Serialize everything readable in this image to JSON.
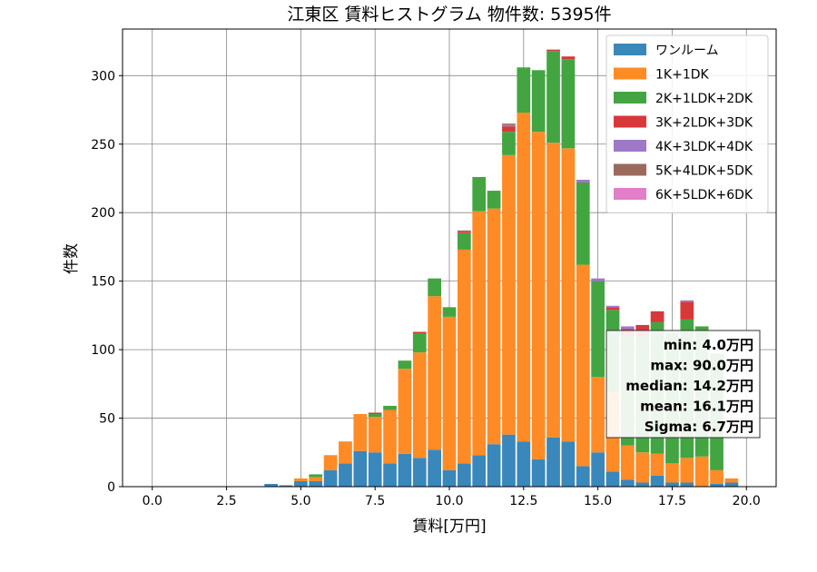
{
  "chart_data": {
    "type": "bar",
    "stacked": true,
    "title": "江東区 賃料ヒストグラム  物件数: 5395件",
    "xlabel": "賃料[万円]",
    "ylabel": "件数",
    "xlim": [
      -1,
      21
    ],
    "ylim": [
      0,
      334
    ],
    "xticks": [
      0.0,
      2.5,
      5.0,
      7.5,
      10.0,
      12.5,
      15.0,
      17.5,
      20.0
    ],
    "xtick_labels": [
      "0.0",
      "2.5",
      "5.0",
      "7.5",
      "10.0",
      "12.5",
      "15.0",
      "17.5",
      "20.0"
    ],
    "yticks": [
      0,
      50,
      100,
      150,
      200,
      250,
      300
    ],
    "ytick_labels": [
      "0",
      "50",
      "100",
      "150",
      "200",
      "250",
      "300"
    ],
    "grid": true,
    "legend_position": "top-right",
    "bin_width": 0.5,
    "x": [
      4.0,
      4.5,
      5.0,
      5.5,
      6.0,
      6.5,
      7.0,
      7.5,
      8.0,
      8.5,
      9.0,
      9.5,
      10.0,
      10.5,
      11.0,
      11.5,
      12.0,
      12.5,
      13.0,
      13.5,
      14.0,
      14.5,
      15.0,
      15.5,
      16.0,
      16.5,
      17.0,
      17.5,
      18.0,
      18.5,
      19.0,
      19.5
    ],
    "series": [
      {
        "name": "ワンルーム",
        "color": "#3a87bb",
        "values": [
          2,
          1,
          4,
          4,
          12,
          17,
          26,
          25,
          17,
          24,
          21,
          27,
          12,
          17,
          23,
          31,
          38,
          33,
          20,
          36,
          33,
          15,
          25,
          11,
          5,
          3,
          8,
          3,
          3,
          0,
          2,
          3
        ]
      },
      {
        "name": "1K+1DK",
        "color": "#ff8b26",
        "values": [
          0,
          0,
          2,
          3,
          11,
          16,
          27,
          26,
          39,
          62,
          77,
          112,
          112,
          156,
          178,
          172,
          204,
          240,
          239,
          215,
          214,
          147,
          55,
          58,
          25,
          22,
          16,
          14,
          18,
          22,
          10,
          3
        ]
      },
      {
        "name": "2K+1LDK+2DK",
        "color": "#43a541",
        "values": [
          0,
          0,
          0,
          2,
          0,
          0,
          0,
          2,
          3,
          6,
          14,
          13,
          7,
          12,
          25,
          13,
          17,
          33,
          45,
          67,
          65,
          60,
          70,
          60,
          80,
          85,
          96,
          95,
          101,
          95,
          85,
          0
        ]
      },
      {
        "name": "3K+2LDK+3DK",
        "color": "#d7383a",
        "values": [
          0,
          0,
          0,
          0,
          0,
          0,
          0,
          1,
          0,
          0,
          1,
          0,
          0,
          1,
          0,
          0,
          4,
          0,
          0,
          1,
          2,
          0,
          0,
          2,
          5,
          8,
          8,
          0,
          13,
          0,
          0,
          0
        ]
      },
      {
        "name": "4K+3LDK+4DK",
        "color": "#9f78c8",
        "values": [
          0,
          0,
          0,
          0,
          0,
          0,
          0,
          0,
          0,
          0,
          0,
          0,
          0,
          0,
          0,
          0,
          1,
          0,
          0,
          0,
          0,
          2,
          2,
          1,
          2,
          0,
          0,
          0,
          1,
          0,
          0,
          0
        ]
      },
      {
        "name": "5K+4LDK+5DK",
        "color": "#9a6a5c",
        "values": [
          0,
          0,
          0,
          0,
          0,
          0,
          0,
          0,
          0,
          0,
          0,
          0,
          0,
          1,
          0,
          0,
          1,
          0,
          0,
          0,
          0,
          0,
          0,
          0,
          0,
          0,
          0,
          0,
          0,
          0,
          0,
          0
        ]
      },
      {
        "name": "6K+5LDK+6DK",
        "color": "#e27fc8",
        "values": [
          0,
          0,
          0,
          0,
          0,
          0,
          0,
          0,
          0,
          0,
          0,
          0,
          0,
          0,
          0,
          0,
          0,
          0,
          0,
          0,
          0,
          0,
          0,
          0,
          0,
          0,
          0,
          0,
          0,
          0,
          0,
          0
        ]
      }
    ],
    "stats": [
      "min: 4.0万円",
      "max: 90.0万円",
      "median: 14.2万円",
      "mean: 16.1万円",
      "Sigma: 6.7万円"
    ]
  }
}
